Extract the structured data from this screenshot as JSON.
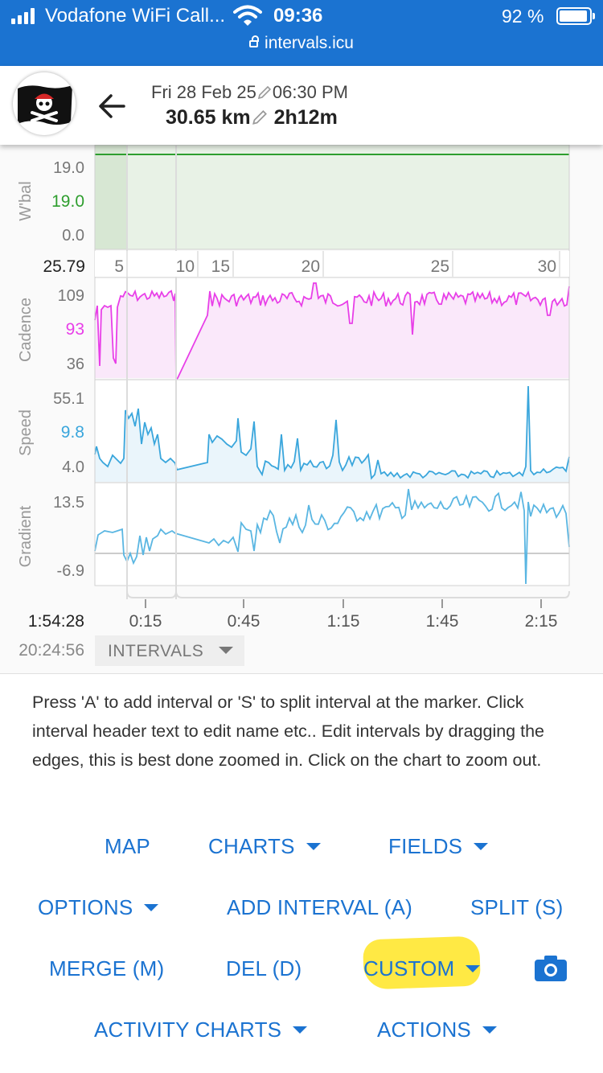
{
  "status_bar": {
    "carrier": "Vodafone WiFi Call...",
    "time": "09:36",
    "battery": "92 %",
    "url": "intervals.icu"
  },
  "activity": {
    "date": "Fri 28 Feb 25",
    "start_time": "06:30 PM",
    "distance": "30.65 km",
    "duration": "2h12m"
  },
  "chart_data": {
    "type": "line",
    "x_axis_distance_ticks": [
      "5",
      "10",
      "15",
      "20",
      "25",
      "30"
    ],
    "x_axis_time_ticks": [
      "0:15",
      "0:45",
      "1:15",
      "1:45",
      "2:15"
    ],
    "cursor_distance": "25.79",
    "cursor_time": "1:54:28",
    "cursor_clock": "20:24:56",
    "intervals_label": "INTERVALS",
    "panels": [
      {
        "name": "W'bal",
        "max": "19.0",
        "current": "19.0",
        "min": "0.0",
        "color": "#2e9e2e"
      },
      {
        "name": "Cadence",
        "max": "109",
        "current": "93",
        "min": "36",
        "color": "#e83fe8"
      },
      {
        "name": "Speed",
        "max": "55.1",
        "current": "9.8",
        "min": "4.0",
        "color": "#3aa6dc"
      },
      {
        "name": "Gradient",
        "max": "13.5",
        "min": "-6.9",
        "color": "#5ab6e2"
      }
    ]
  },
  "help_text": "Press 'A' to add interval or 'S' to split interval at the marker. Click interval header text to edit name etc.. Edit intervals by dragging the edges, this is best done zoomed in. Click on the chart to zoom out.",
  "buttons": {
    "map": "MAP",
    "charts": "CHARTS",
    "fields": "FIELDS",
    "options": "OPTIONS",
    "add_interval": "ADD INTERVAL (A)",
    "split": "SPLIT (S)",
    "merge": "MERGE (M)",
    "del": "DEL (D)",
    "custom": "CUSTOM",
    "activity_charts": "ACTIVITY CHARTS",
    "actions": "ACTIONS"
  }
}
